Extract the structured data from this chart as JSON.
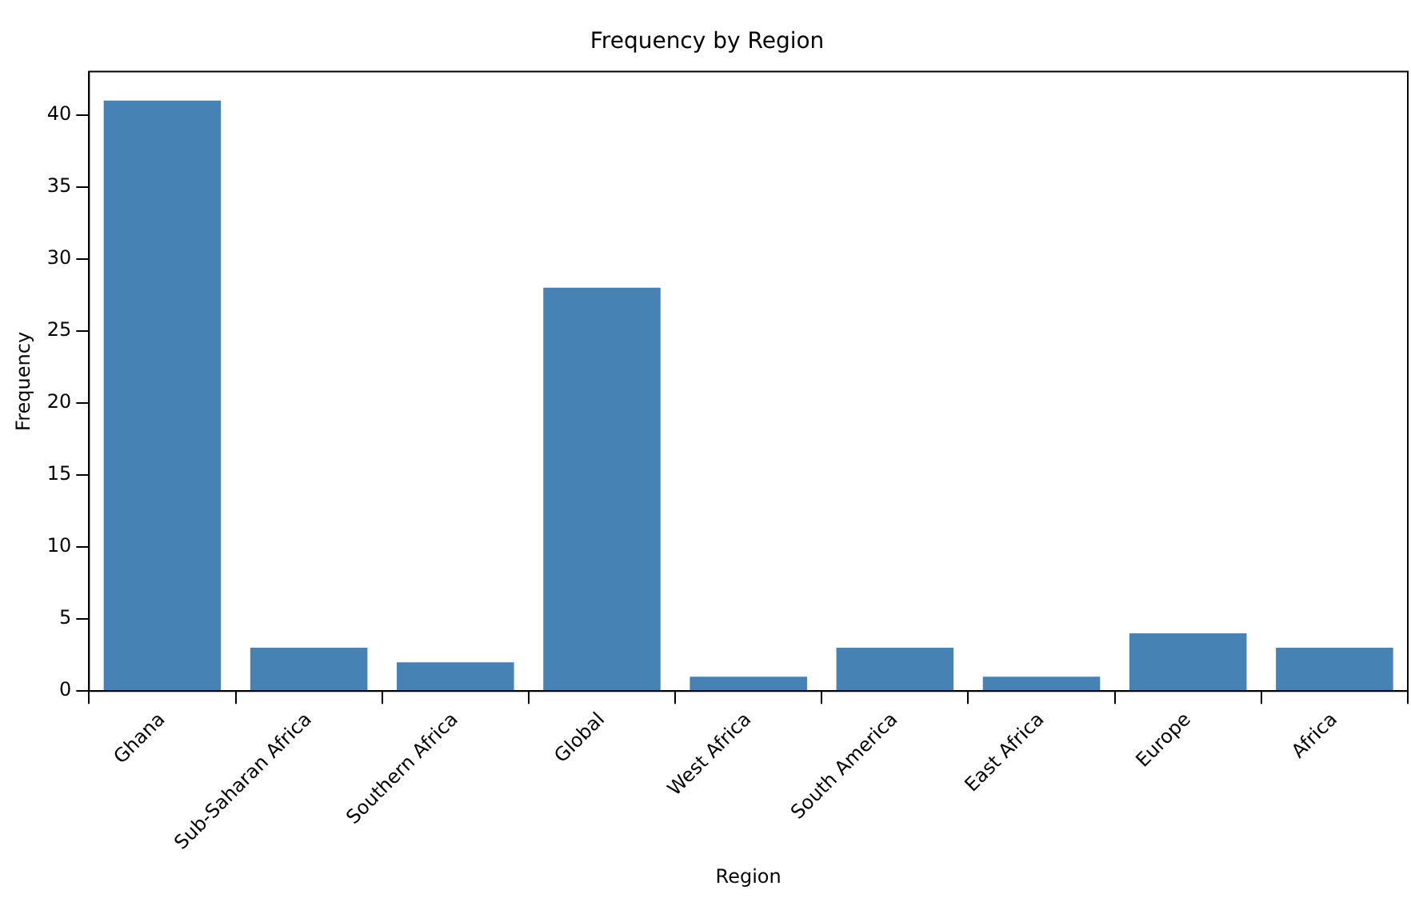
{
  "chart_data": {
    "type": "bar",
    "title": "Frequency by Region",
    "xlabel": "Region",
    "ylabel": "Frequency",
    "categories": [
      "Ghana",
      "Sub-Saharan Africa",
      "Southern Africa",
      "Global",
      "West Africa",
      "South America",
      "East Africa",
      "Europe",
      "Africa"
    ],
    "values": [
      41,
      3,
      2,
      28,
      1,
      3,
      1,
      4,
      3
    ],
    "color": "#4682b4",
    "ylim": [
      0,
      43
    ],
    "yticks": [
      0,
      5,
      10,
      15,
      20,
      25,
      30,
      35,
      40
    ]
  }
}
